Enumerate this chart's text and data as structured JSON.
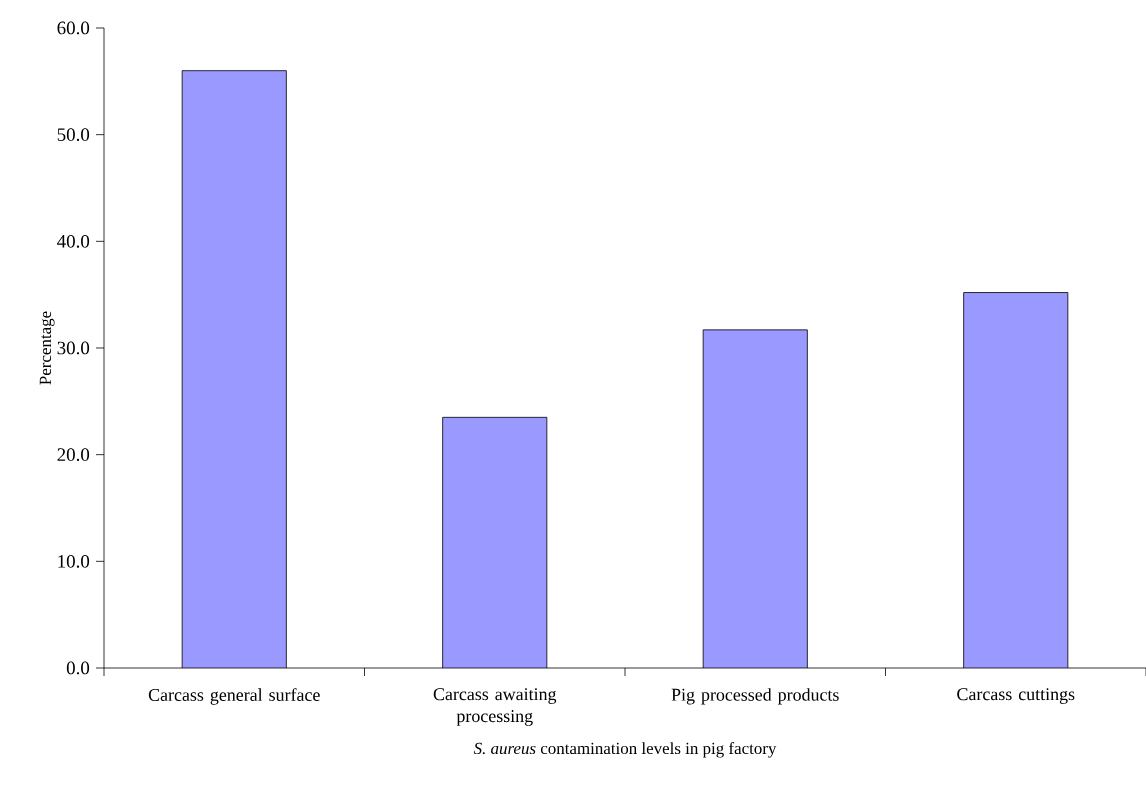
{
  "chart_data": {
    "type": "bar",
    "xlabel": "*S. aureus* contamination levels in pig factory",
    "ylabel": "Percentage",
    "categories": [
      "Carcass general surface",
      "Carcass awaiting processing",
      "Pig processed products",
      "Carcass cuttings"
    ],
    "values": [
      56.0,
      23.5,
      31.7,
      35.2
    ],
    "color": "#9999ff",
    "ylim": [
      0,
      60
    ],
    "yticks": [
      {
        "value": 0,
        "label": "0.0"
      },
      {
        "value": 10,
        "label": "10.0"
      },
      {
        "value": 20,
        "label": "20.0"
      },
      {
        "value": 30,
        "label": "30.0"
      },
      {
        "value": 40,
        "label": "40.0"
      },
      {
        "value": 50,
        "label": "50.0"
      },
      {
        "value": 60,
        "label": "60.0"
      }
    ],
    "grid": false
  }
}
